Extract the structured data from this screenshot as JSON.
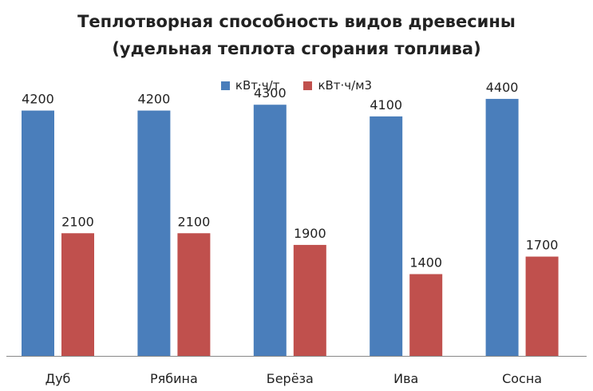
{
  "chart_data": {
    "type": "bar",
    "title_line1": "Теплотворная способность видов древесины",
    "title_line2": "(удельная теплота сгорания топлива)",
    "xlabel": "",
    "ylabel": "",
    "categories": [
      "Дуб",
      "Рябина",
      "Берёза",
      "Ива",
      "Сосна"
    ],
    "series": [
      {
        "name": "кВт·ч/т",
        "values": [
          4200,
          4200,
          4300,
          4100,
          4400
        ],
        "color": "#4a7ebb"
      },
      {
        "name": "кВт·ч/м3",
        "values": [
          2100,
          2100,
          1900,
          1400,
          1700
        ],
        "color": "#c0504d"
      }
    ],
    "ylim": [
      0,
      5000
    ],
    "grid": false,
    "legend_position": "top",
    "data_labels": true
  }
}
